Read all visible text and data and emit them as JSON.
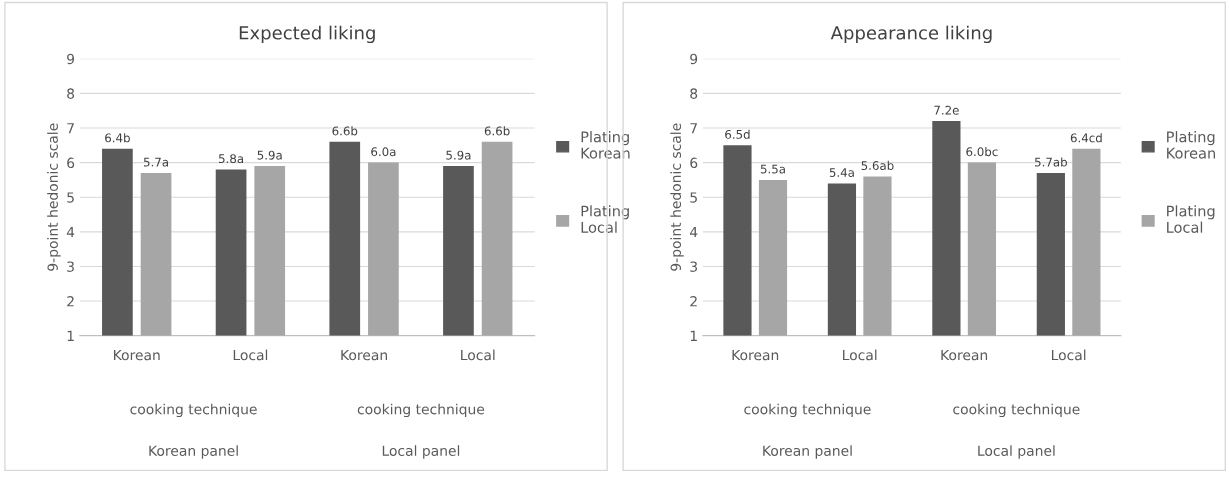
{
  "chart_data": [
    {
      "type": "bar",
      "title": "Expected liking",
      "ylabel": "9-point hedonic scale",
      "categories": [
        "Korean",
        "Local",
        "Korean",
        "Local"
      ],
      "ylim": [
        1,
        9
      ],
      "yticks": [
        1,
        2,
        3,
        4,
        5,
        6,
        7,
        8,
        9
      ],
      "grid": "y",
      "legend": "right",
      "series": [
        {
          "name": "Plating Korean",
          "color": "#595959",
          "values": [
            6.4,
            5.8,
            6.6,
            5.9
          ],
          "value_labels": [
            "6.4b",
            "5.8a",
            "6.6b",
            "5.9a"
          ]
        },
        {
          "name": "Plating Local",
          "color": "#a6a6a6",
          "values": [
            5.7,
            5.9,
            6.0,
            6.6
          ],
          "value_labels": [
            "5.7a",
            "5.9a",
            "6.0a",
            "6.6b"
          ]
        }
      ],
      "annotations": [
        "cooking technique",
        "cooking technique",
        "Korean panel",
        "Local panel"
      ]
    },
    {
      "type": "bar",
      "title": "Appearance liking",
      "ylabel": "9-point hedonic scale",
      "categories": [
        "Korean",
        "Local",
        "Korean",
        "Local"
      ],
      "ylim": [
        1,
        9
      ],
      "yticks": [
        1,
        2,
        3,
        4,
        5,
        6,
        7,
        8,
        9
      ],
      "grid": "y",
      "legend": "right",
      "series": [
        {
          "name": "Plating Korean",
          "color": "#595959",
          "values": [
            6.5,
            5.4,
            7.2,
            5.7
          ],
          "value_labels": [
            "6.5d",
            "5.4a",
            "7.2e",
            "5.7ab"
          ]
        },
        {
          "name": "Plating Local",
          "color": "#a6a6a6",
          "values": [
            5.5,
            5.6,
            6.0,
            6.4
          ],
          "value_labels": [
            "5.5a",
            "5.6ab",
            "6.0bc",
            "6.4cd"
          ]
        }
      ],
      "annotations": [
        "cooking technique",
        "cooking technique",
        "Korean panel",
        "Local panel"
      ]
    }
  ]
}
